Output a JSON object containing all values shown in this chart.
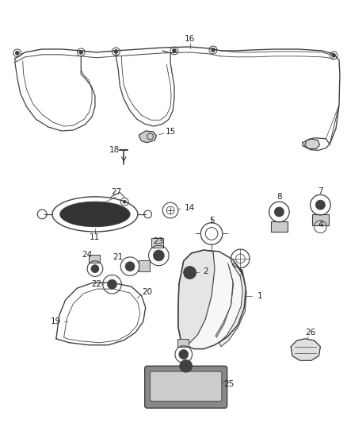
{
  "bg_color": "#ffffff",
  "line_color": "#404040",
  "text_color": "#222222",
  "fig_width": 4.38,
  "fig_height": 5.33,
  "dpi": 100
}
